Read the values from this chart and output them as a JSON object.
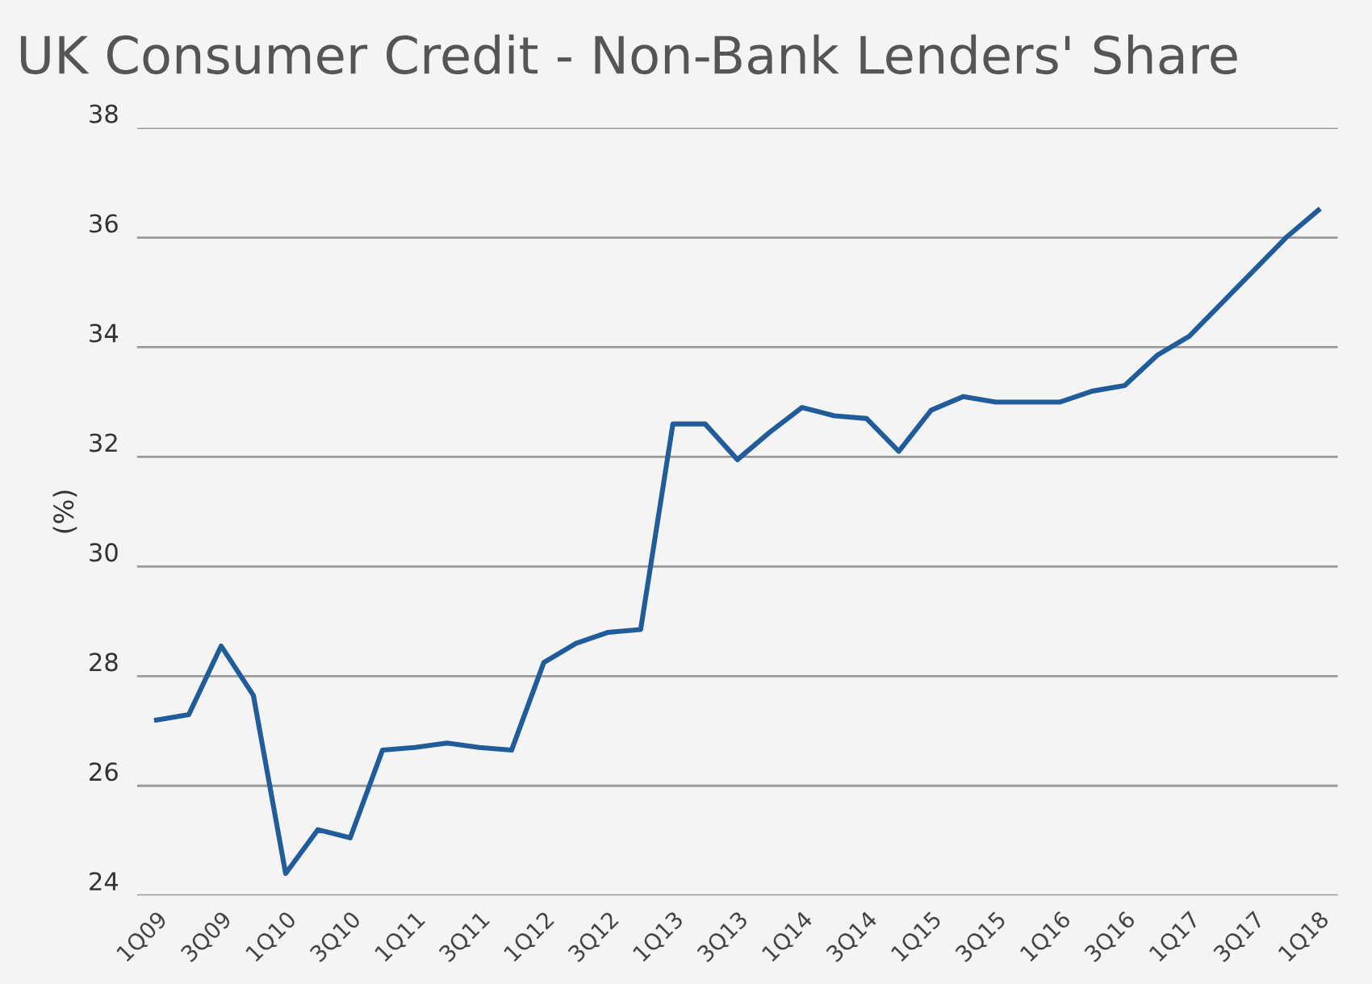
{
  "chart_data": {
    "type": "line",
    "title": "UK Consumer Credit - Non-Bank Lenders' Share",
    "ylabel": "(%)",
    "categories": [
      "1Q09",
      null,
      "3Q09",
      null,
      "1Q10",
      null,
      "3Q10",
      null,
      "1Q11",
      null,
      "3Q11",
      null,
      "1Q12",
      null,
      "3Q12",
      null,
      "1Q13",
      null,
      "3Q13",
      null,
      "1Q14",
      null,
      "3Q14",
      null,
      "1Q15",
      null,
      "3Q15",
      null,
      "1Q16",
      null,
      "3Q16",
      null,
      "1Q17",
      null,
      "3Q17",
      null,
      "1Q18"
    ],
    "series": [
      {
        "color": "#1f5c99",
        "values": [
          27.2,
          27.3,
          28.55,
          27.65,
          24.4,
          25.2,
          25.05,
          26.65,
          26.7,
          26.78,
          26.7,
          26.65,
          28.25,
          28.6,
          28.8,
          28.85,
          32.6,
          32.6,
          31.95,
          32.45,
          32.9,
          32.75,
          32.7,
          32.1,
          32.85,
          33.1,
          33.0,
          33.0,
          33.0,
          33.2,
          33.3,
          33.85,
          34.2,
          34.8,
          35.4,
          36.0,
          36.5
        ]
      }
    ],
    "ylim": [
      24,
      38
    ],
    "yticks": [
      24,
      26,
      28,
      30,
      32,
      34,
      36,
      38
    ],
    "grid": "y",
    "legend": false,
    "marker": "none",
    "line_style": "solid"
  }
}
